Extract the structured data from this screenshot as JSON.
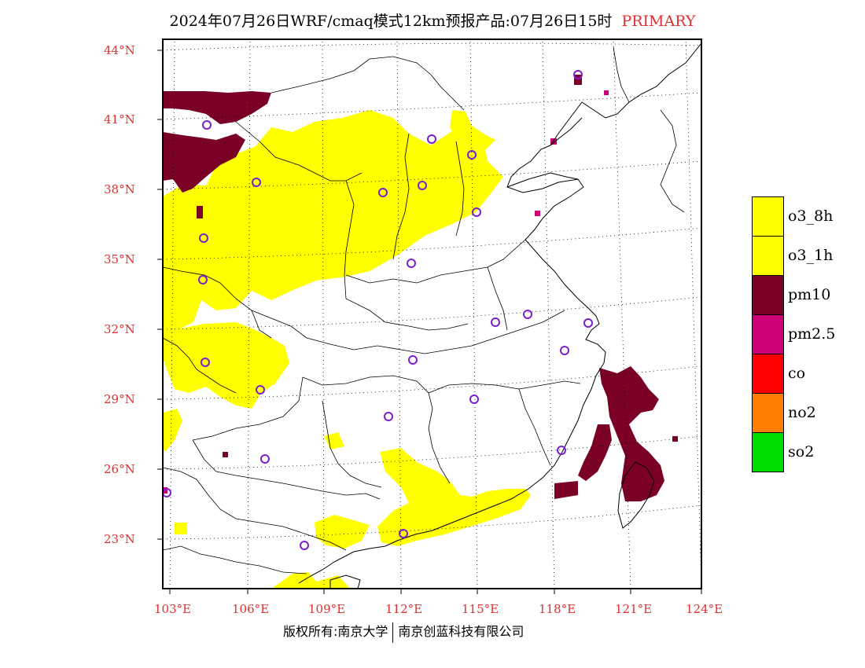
{
  "title": {
    "main": "2024年07月26日WRF/cmaq模式12km预报产品:07月26日15时",
    "tag": "PRIMARY"
  },
  "axes": {
    "lat_labels": [
      "44°N",
      "41°N",
      "38°N",
      "35°N",
      "32°N",
      "29°N",
      "26°N",
      "23°N"
    ],
    "lon_labels": [
      "103°E",
      "106°E",
      "109°E",
      "112°E",
      "115°E",
      "118°E",
      "121°E",
      "124°E"
    ]
  },
  "legend": [
    {
      "label": "o3_8h",
      "color": "#ffff00"
    },
    {
      "label": "o3_1h",
      "color": "#ffff00"
    },
    {
      "label": "pm10",
      "color": "#7a0026"
    },
    {
      "label": "pm2.5",
      "color": "#cc0077"
    },
    {
      "label": "co",
      "color": "#ff0000"
    },
    {
      "label": "no2",
      "color": "#ff7f00"
    },
    {
      "label": "so2",
      "color": "#00dd00"
    }
  ],
  "footer": {
    "left": "版权所有:南京大学",
    "right": "南京创蓝科技有限公司"
  },
  "colors": {
    "axis_label": "#e03030",
    "o3": "#ffff00",
    "pm10": "#7a0026",
    "pm25": "#cc0077",
    "station": "#7a1fd0"
  }
}
